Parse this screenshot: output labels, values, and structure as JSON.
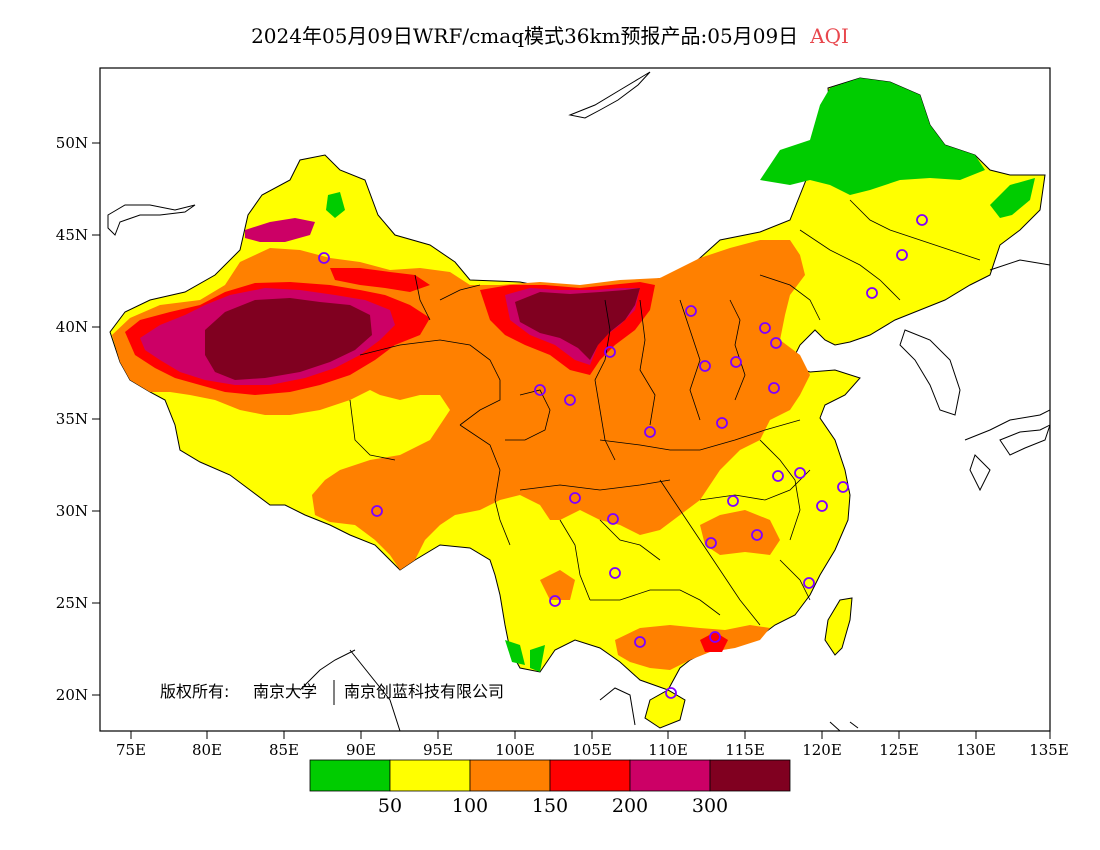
{
  "title": {
    "text": "2024年05月09日WRF/cmaq模式36km预报产品:05月09日",
    "variable": "AQI"
  },
  "axes": {
    "lat_ticks": [
      "50N",
      "45N",
      "40N",
      "35N",
      "30N",
      "25N",
      "20N"
    ],
    "lon_ticks": [
      "75E",
      "80E",
      "85E",
      "90E",
      "95E",
      "100E",
      "105E",
      "110E",
      "115E",
      "120E",
      "125E",
      "130E",
      "135E"
    ]
  },
  "copyright": {
    "label": "版权所有:",
    "owner1": "南京大学",
    "owner2": "南京创蓝科技有限公司"
  },
  "legend": {
    "colors": [
      "#00cc00",
      "#ffff00",
      "#ff8000",
      "#ff0000",
      "#cc0066",
      "#800020"
    ],
    "labels": [
      "50",
      "100",
      "150",
      "200",
      "300"
    ]
  },
  "colors": {
    "good": "#00cc00",
    "moderate": "#ffff00",
    "sensitive": "#ff8000",
    "unhealthy": "#ff0000",
    "very_unhealthy": "#cc0066",
    "hazardous": "#800020",
    "station_marker": "#8000ff"
  }
}
